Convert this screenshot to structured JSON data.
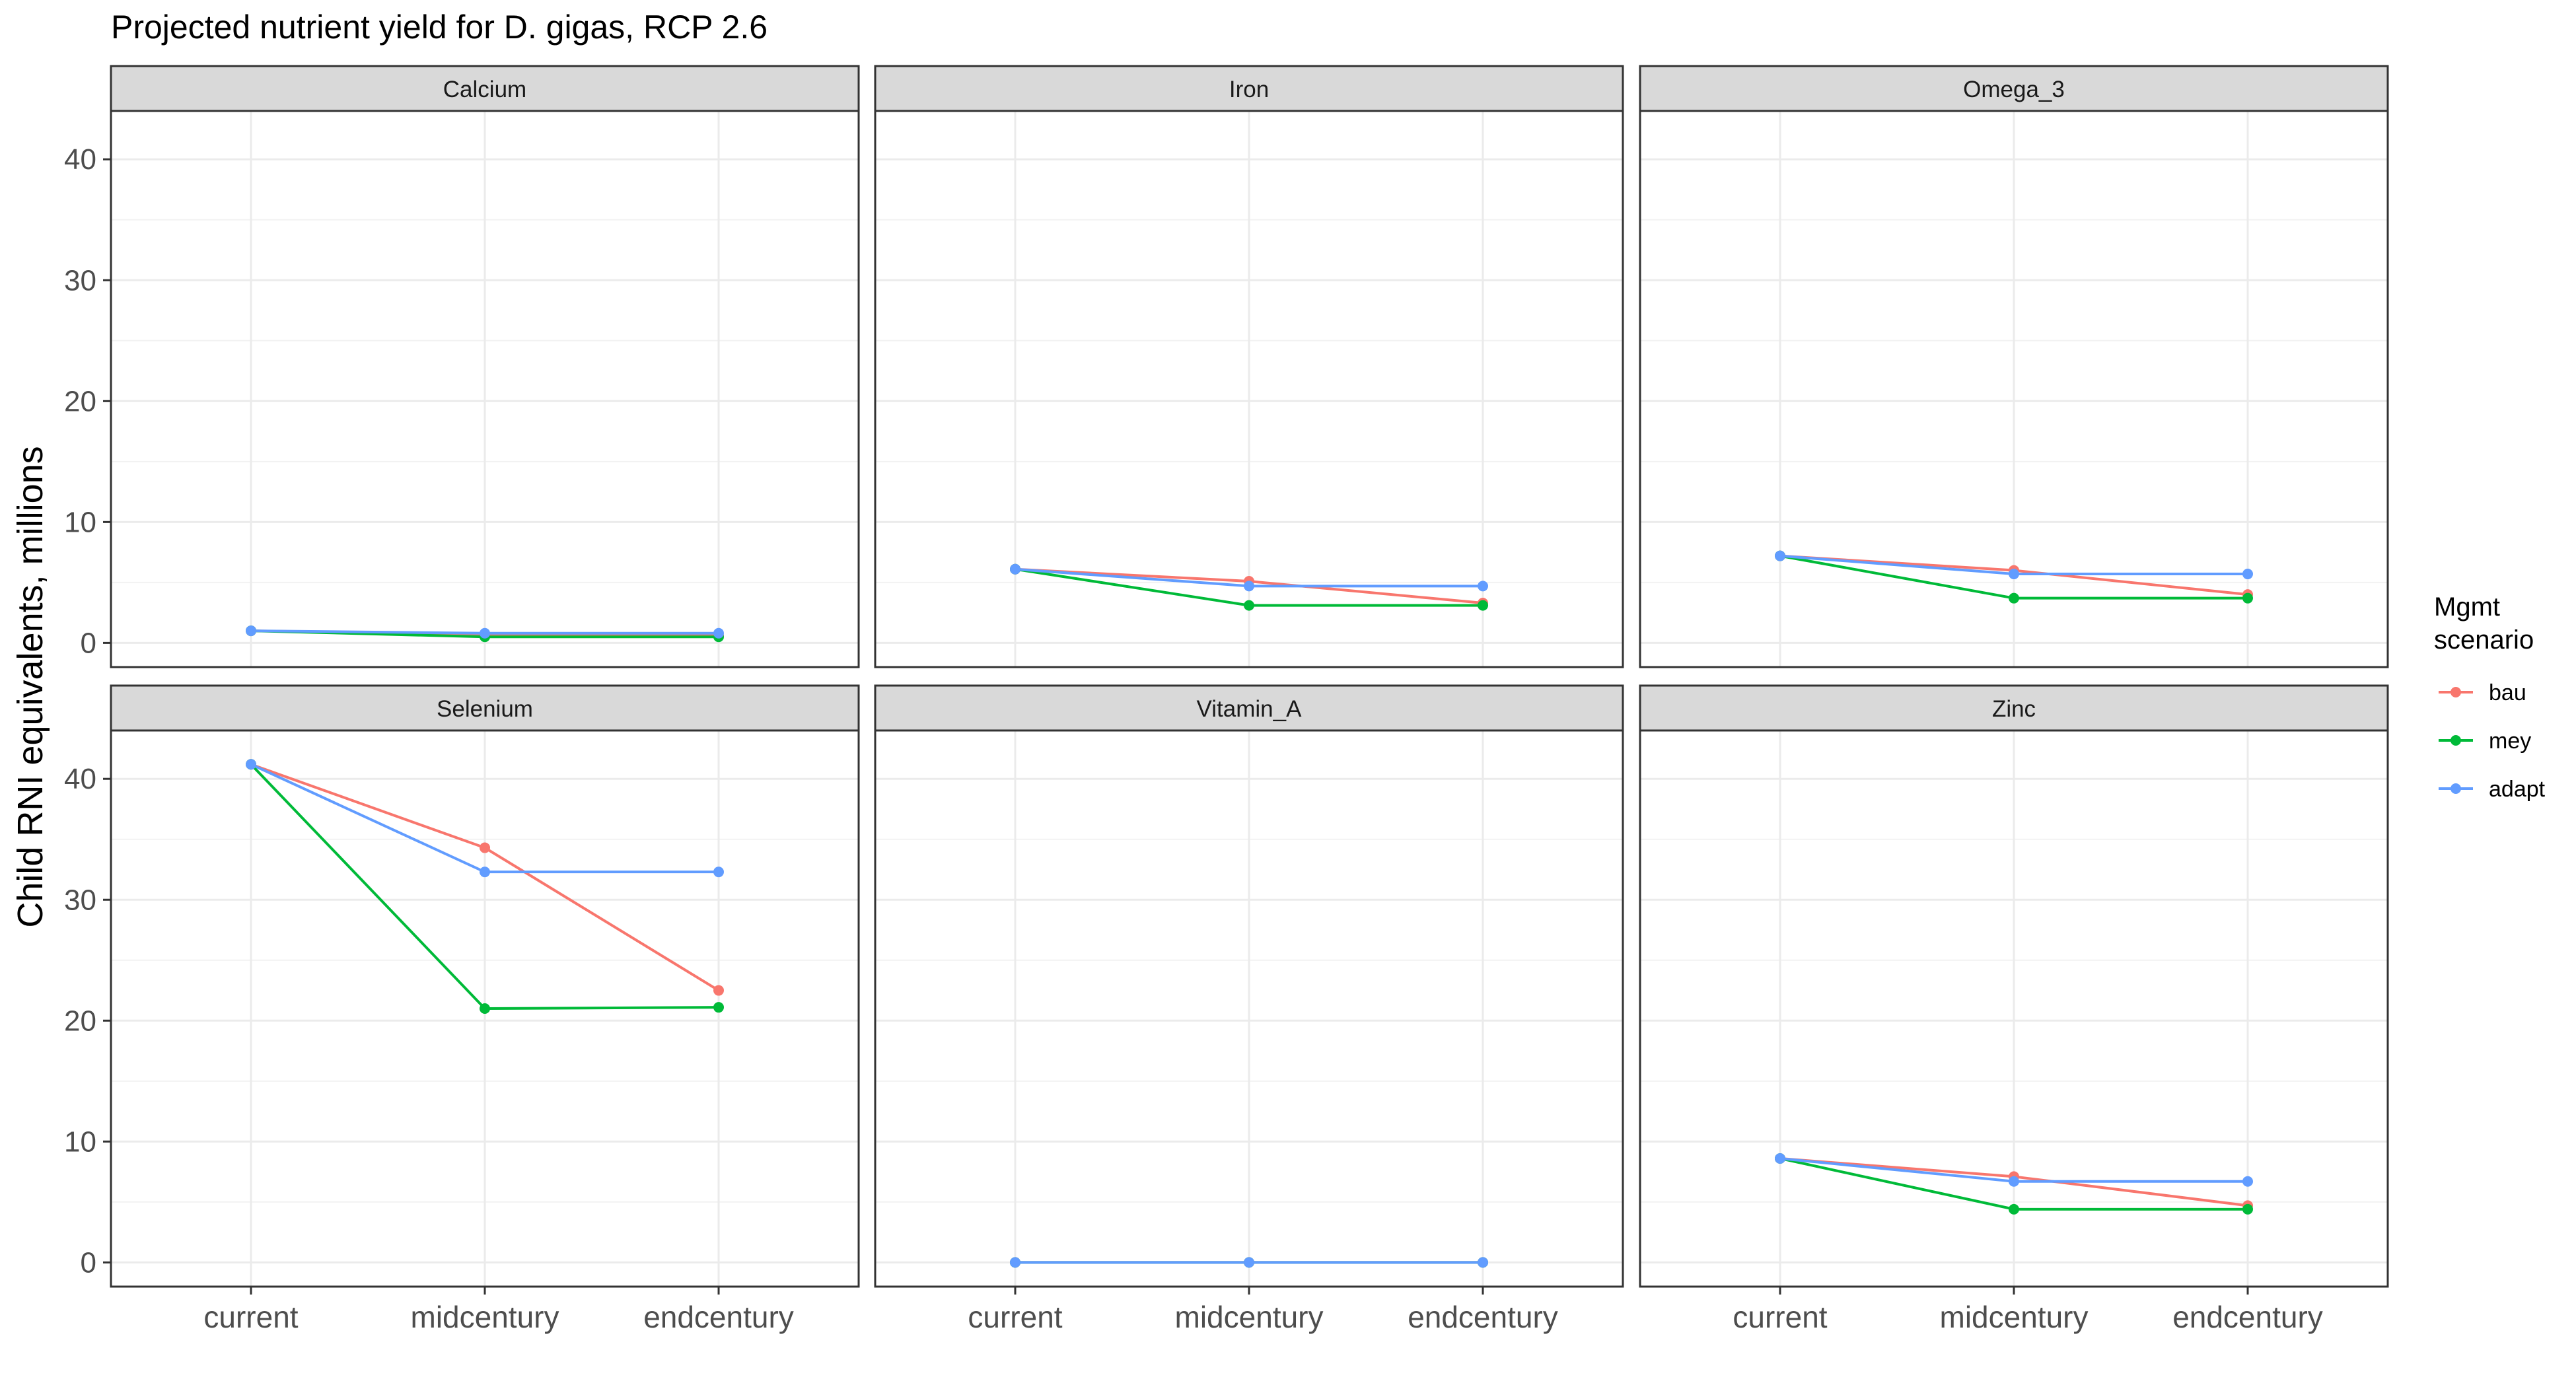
{
  "chart_data": {
    "type": "line",
    "title": "Projected nutrient yield for D. gigas, RCP 2.6",
    "ylabel": "Child RNI equivalents, millions",
    "xlabel": "",
    "categories": [
      "current",
      "midcentury",
      "endcentury"
    ],
    "ylim": [
      -2,
      44
    ],
    "yticks": [
      0,
      10,
      20,
      30,
      40
    ],
    "grid": true,
    "legend": {
      "title": "Mgmt scenario",
      "position": "right",
      "entries": [
        "bau",
        "mey",
        "adapt"
      ]
    },
    "colors": {
      "bau": "#F8766D",
      "mey": "#00BA38",
      "adapt": "#619CFF"
    },
    "panels": [
      {
        "name": "Calcium",
        "series": [
          {
            "name": "bau",
            "values": [
              1.0,
              0.7,
              0.6
            ]
          },
          {
            "name": "mey",
            "values": [
              1.0,
              0.5,
              0.5
            ]
          },
          {
            "name": "adapt",
            "values": [
              1.0,
              0.8,
              0.8
            ]
          }
        ]
      },
      {
        "name": "Iron",
        "series": [
          {
            "name": "bau",
            "values": [
              6.1,
              5.1,
              3.3
            ]
          },
          {
            "name": "mey",
            "values": [
              6.1,
              3.1,
              3.1
            ]
          },
          {
            "name": "adapt",
            "values": [
              6.1,
              4.7,
              4.7
            ]
          }
        ]
      },
      {
        "name": "Omega_3",
        "series": [
          {
            "name": "bau",
            "values": [
              7.2,
              6.0,
              4.0
            ]
          },
          {
            "name": "mey",
            "values": [
              7.2,
              3.7,
              3.7
            ]
          },
          {
            "name": "adapt",
            "values": [
              7.2,
              5.7,
              5.7
            ]
          }
        ]
      },
      {
        "name": "Selenium",
        "series": [
          {
            "name": "bau",
            "values": [
              41.2,
              34.3,
              22.5
            ]
          },
          {
            "name": "mey",
            "values": [
              41.2,
              21.0,
              21.1
            ]
          },
          {
            "name": "adapt",
            "values": [
              41.2,
              32.3,
              32.3
            ]
          }
        ]
      },
      {
        "name": "Vitamin_A",
        "series": [
          {
            "name": "bau",
            "values": [
              0.0,
              0.0,
              0.0
            ]
          },
          {
            "name": "mey",
            "values": [
              0.0,
              0.0,
              0.0
            ]
          },
          {
            "name": "adapt",
            "values": [
              0.0,
              0.0,
              0.0
            ]
          }
        ]
      },
      {
        "name": "Zinc",
        "series": [
          {
            "name": "bau",
            "values": [
              8.6,
              7.1,
              4.7
            ]
          },
          {
            "name": "mey",
            "values": [
              8.6,
              4.4,
              4.4
            ]
          },
          {
            "name": "adapt",
            "values": [
              8.6,
              6.7,
              6.7
            ]
          }
        ]
      }
    ]
  }
}
